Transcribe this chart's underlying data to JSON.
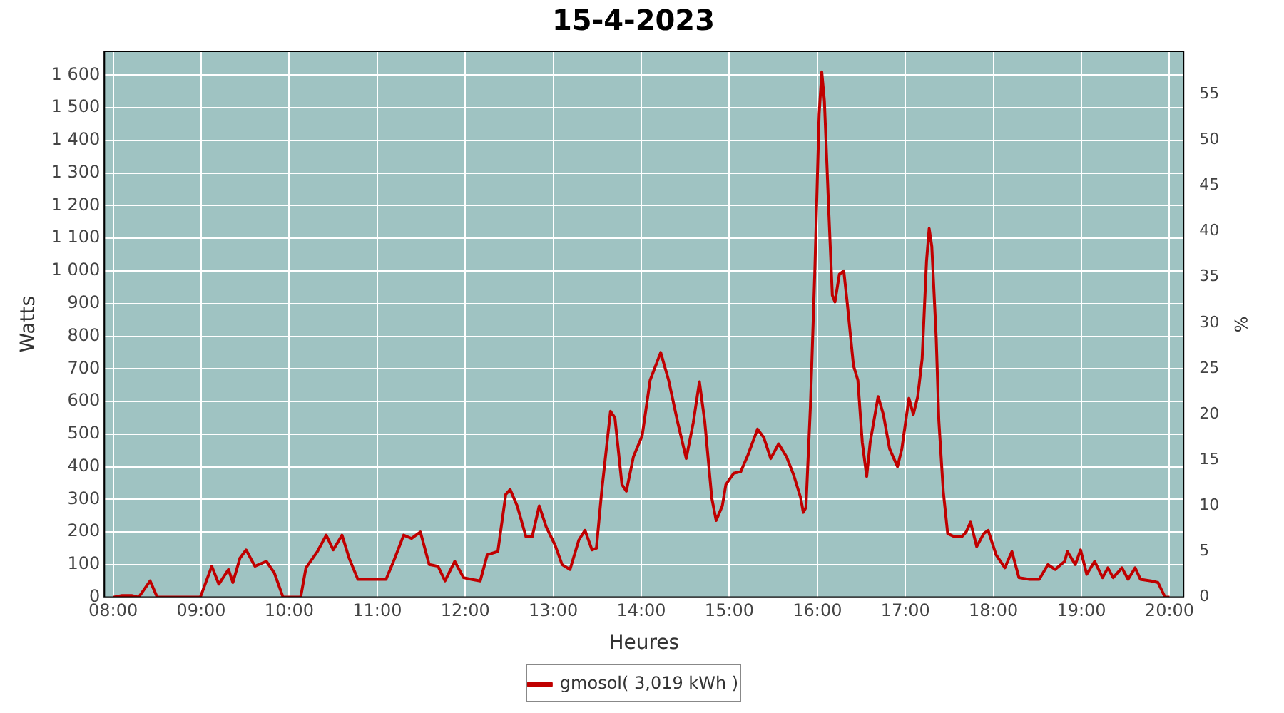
{
  "chart_data": {
    "type": "line",
    "title": "15-4-2023",
    "xlabel": "Heures",
    "ylabel": "Watts",
    "y2label": "%",
    "xlim": [
      7.9,
      20.16
    ],
    "xticks": [
      {
        "value": 8,
        "label": "08:00"
      },
      {
        "value": 9,
        "label": "09:00"
      },
      {
        "value": 10,
        "label": "10:00"
      },
      {
        "value": 11,
        "label": "11:00"
      },
      {
        "value": 12,
        "label": "12:00"
      },
      {
        "value": 13,
        "label": "13:00"
      },
      {
        "value": 14,
        "label": "14:00"
      },
      {
        "value": 15,
        "label": "15:00"
      },
      {
        "value": 16,
        "label": "16:00"
      },
      {
        "value": 17,
        "label": "17:00"
      },
      {
        "value": 18,
        "label": "18:00"
      },
      {
        "value": 19,
        "label": "19:00"
      },
      {
        "value": 20,
        "label": "20:00"
      }
    ],
    "ylim": [
      0,
      1673
    ],
    "yticks": [
      0,
      100,
      200,
      300,
      400,
      500,
      600,
      700,
      800,
      900,
      {
        "value": 1000,
        "label": "1 000"
      },
      {
        "value": 1100,
        "label": "1 100"
      },
      {
        "value": 1200,
        "label": "1 200"
      },
      {
        "value": 1300,
        "label": "1 300"
      },
      {
        "value": 1400,
        "label": "1 400"
      },
      {
        "value": 1500,
        "label": "1 500"
      },
      {
        "value": 1600,
        "label": "1 600"
      }
    ],
    "y2lim": [
      0,
      59.7
    ],
    "y2ticks": [
      0,
      5,
      10,
      15,
      20,
      25,
      30,
      35,
      40,
      45,
      50,
      55
    ],
    "grid": true,
    "legend": "bottom",
    "marker": "none",
    "line_style": "solid",
    "series": [
      {
        "name": "gmosol( 3,019 kWh )",
        "color": "#c00000",
        "x": [
          8.0,
          8.1,
          8.21,
          8.29,
          8.42,
          8.5,
          8.67,
          8.99,
          9.12,
          9.2,
          9.31,
          9.36,
          9.44,
          9.51,
          9.61,
          9.74,
          9.83,
          9.93,
          10.13,
          10.19,
          10.32,
          10.42,
          10.5,
          10.6,
          10.68,
          10.78,
          10.87,
          11.1,
          11.2,
          11.3,
          11.39,
          11.49,
          11.59,
          11.69,
          11.77,
          11.88,
          11.98,
          12.07,
          12.17,
          12.25,
          12.37,
          12.46,
          12.51,
          12.59,
          12.69,
          12.76,
          12.84,
          12.92,
          13.02,
          13.1,
          13.19,
          13.29,
          13.36,
          13.44,
          13.49,
          13.55,
          13.65,
          13.7,
          13.78,
          13.83,
          13.91,
          14.01,
          14.1,
          14.22,
          14.31,
          14.41,
          14.51,
          14.59,
          14.66,
          14.72,
          14.8,
          14.85,
          14.92,
          14.96,
          15.05,
          15.13,
          15.21,
          15.32,
          15.39,
          15.47,
          15.56,
          15.65,
          15.73,
          15.81,
          15.84,
          15.87,
          15.92,
          15.97,
          16.02,
          16.05,
          16.08,
          16.13,
          16.17,
          16.2,
          16.25,
          16.3,
          16.34,
          16.41,
          16.46,
          16.51,
          16.56,
          16.6,
          16.69,
          16.75,
          16.82,
          16.91,
          16.96,
          17.04,
          17.09,
          17.14,
          17.19,
          17.24,
          17.27,
          17.3,
          17.35,
          17.38,
          17.43,
          17.48,
          17.56,
          17.64,
          17.69,
          17.74,
          17.81,
          17.89,
          17.94,
          18.03,
          18.13,
          18.21,
          18.29,
          18.41,
          18.52,
          18.62,
          18.7,
          18.81,
          18.84,
          18.93,
          18.99,
          19.06,
          19.15,
          19.24,
          19.3,
          19.36,
          19.46,
          19.53,
          19.61,
          19.67,
          19.79,
          19.87,
          19.95,
          20.0
        ],
        "values": [
          0,
          5,
          5,
          0,
          50,
          0,
          0,
          0,
          95,
          40,
          85,
          45,
          120,
          145,
          95,
          110,
          75,
          0,
          0,
          90,
          140,
          190,
          145,
          190,
          120,
          55,
          55,
          55,
          120,
          190,
          180,
          200,
          100,
          95,
          50,
          110,
          60,
          55,
          50,
          130,
          140,
          315,
          330,
          280,
          185,
          185,
          280,
          215,
          160,
          100,
          85,
          175,
          205,
          145,
          150,
          325,
          570,
          550,
          345,
          325,
          430,
          495,
          665,
          750,
          665,
          540,
          425,
          535,
          660,
          540,
          305,
          235,
          280,
          345,
          380,
          385,
          435,
          515,
          490,
          425,
          470,
          430,
          375,
          305,
          260,
          275,
          580,
          990,
          1480,
          1610,
          1520,
          1180,
          925,
          905,
          990,
          1000,
          900,
          710,
          665,
          475,
          370,
          475,
          615,
          560,
          455,
          400,
          455,
          610,
          560,
          615,
          730,
          1030,
          1130,
          1075,
          795,
          540,
          325,
          195,
          185,
          185,
          200,
          230,
          155,
          195,
          205,
          130,
          90,
          140,
          60,
          55,
          55,
          100,
          85,
          110,
          140,
          100,
          145,
          70,
          110,
          60,
          90,
          60,
          90,
          55,
          90,
          55,
          50,
          45,
          0,
          0
        ]
      }
    ]
  }
}
